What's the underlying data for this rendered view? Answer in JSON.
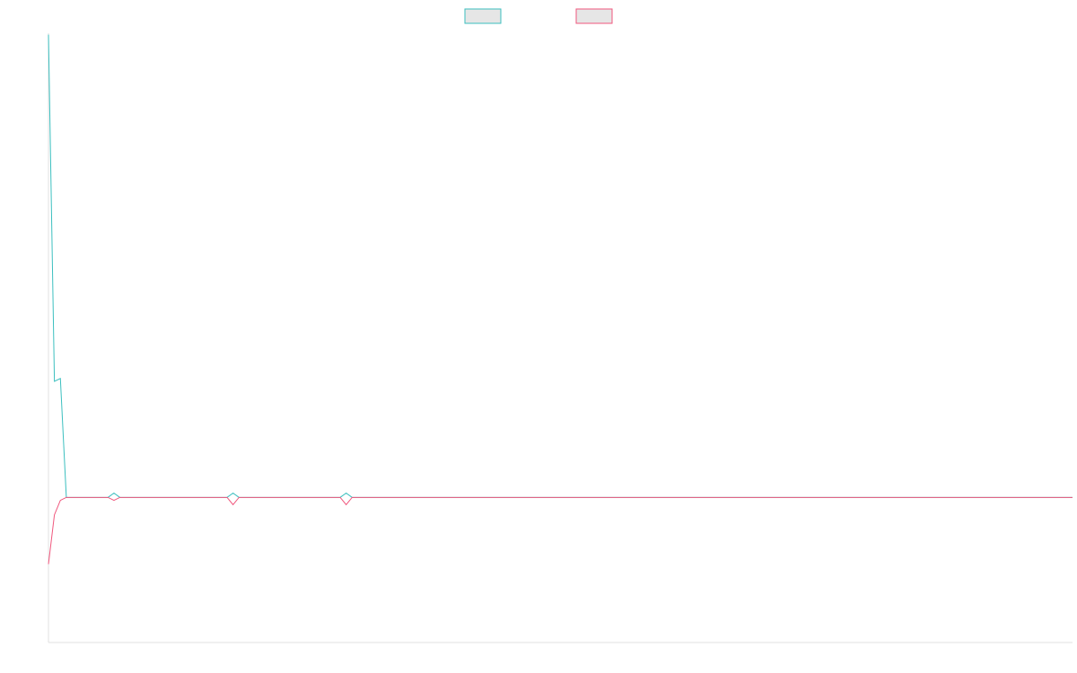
{
  "chart_data": {
    "type": "line",
    "title": "",
    "xlabel": "",
    "ylabel": "",
    "legend_position": "top-center",
    "grid": false,
    "colors": {
      "series_a": "#3bbfbf",
      "series_b": "#f0577d",
      "legend_fill": "#e6e6e6",
      "axis": "#e0e0e0"
    },
    "ylim": [
      -1.0,
      3.2
    ],
    "x": [
      0,
      1,
      2,
      3,
      4,
      5,
      6,
      7,
      8,
      9,
      10,
      11,
      12,
      13,
      14,
      15,
      16,
      17,
      18,
      19,
      20,
      21,
      22,
      23,
      24,
      25,
      26,
      27,
      28,
      29,
      30,
      31,
      32,
      33,
      34,
      35,
      36,
      37,
      38,
      39,
      40,
      41,
      42,
      43,
      44,
      45,
      46,
      47,
      48,
      49,
      50,
      51,
      52,
      53,
      54,
      55,
      56,
      57,
      58,
      59,
      60,
      61,
      62,
      63,
      64,
      65,
      66,
      67,
      68,
      69,
      70,
      71,
      72,
      73,
      74,
      75,
      76,
      77,
      78,
      79,
      80,
      81,
      82,
      83,
      84,
      85,
      86,
      87,
      88,
      89,
      90,
      91,
      92,
      93,
      94,
      95,
      96,
      97,
      98,
      99,
      100,
      101,
      102,
      103,
      104,
      105,
      106,
      107,
      108,
      109,
      110,
      111,
      112,
      113,
      114,
      115,
      116,
      117,
      118,
      119,
      120,
      121,
      122,
      123,
      124,
      125,
      126,
      127,
      128,
      129,
      130,
      131,
      132,
      133,
      134,
      135,
      136,
      137,
      138,
      139,
      140,
      141,
      142,
      143,
      144,
      145,
      146,
      147,
      148,
      149,
      150,
      151,
      152,
      153,
      154,
      155,
      156,
      157,
      158,
      159,
      160,
      161,
      162,
      163,
      164,
      165,
      166,
      167,
      168,
      169,
      170,
      171,
      172
    ],
    "series": [
      {
        "name": "",
        "values": [
          3.19,
          0.8,
          0.82,
          0.0,
          0.0,
          0.0,
          0.0,
          0.0,
          0.0,
          0.0,
          0.0,
          0.03,
          0.0,
          0.0,
          0.0,
          0.0,
          0.0,
          0.0,
          0.0,
          0.0,
          0.0,
          0.0,
          0.0,
          0.0,
          0.0,
          0.0,
          0.0,
          0.0,
          0.0,
          0.0,
          0.0,
          0.03,
          0.0,
          0.0,
          0.0,
          0.0,
          0.0,
          0.0,
          0.0,
          0.0,
          0.0,
          0.0,
          0.0,
          0.0,
          0.0,
          0.0,
          0.0,
          0.0,
          0.0,
          0.0,
          0.03,
          0.0,
          0.0,
          0.0,
          0.0,
          0.0,
          0.0,
          0.0,
          0.0,
          0.0,
          0.0,
          0.0,
          0.0,
          0.0,
          0.0,
          0.0,
          0.0,
          0.0,
          0.0,
          0.0,
          0.0,
          0.0,
          0.0,
          0.0,
          0.0,
          0.0,
          0.0,
          0.0,
          0.0,
          0.0,
          0.0,
          0.0,
          0.0,
          0.0,
          0.0,
          0.0,
          0.0,
          0.0,
          0.0,
          0.0,
          0.0,
          0.0,
          0.0,
          0.0,
          0.0,
          0.0,
          0.0,
          0.0,
          0.0,
          0.0,
          0.0,
          0.0,
          0.0,
          0.0,
          0.0,
          0.0,
          0.0,
          0.0,
          0.0,
          0.0,
          0.0,
          0.0,
          0.0,
          0.0,
          0.0,
          0.0,
          0.0,
          0.0,
          0.0,
          0.0,
          0.0,
          0.0,
          0.0,
          0.0,
          0.0,
          0.0,
          0.0,
          0.0,
          0.0,
          0.0,
          0.0,
          0.0,
          0.0,
          0.0,
          0.0,
          0.0,
          0.0,
          0.0,
          0.0,
          0.0,
          0.0,
          0.0,
          0.0,
          0.0,
          0.0,
          0.0,
          0.0,
          0.0,
          0.0,
          0.0,
          0.0,
          0.0,
          0.0,
          0.0,
          0.0,
          0.0,
          0.0,
          0.0,
          0.0,
          0.0,
          0.0,
          0.0,
          0.0,
          0.0,
          0.0,
          0.0,
          0.0,
          0.0,
          0.0,
          0.0,
          0.0,
          0.0,
          0.0
        ]
      },
      {
        "name": "",
        "values": [
          -0.46,
          -0.12,
          -0.02,
          0.0,
          0.0,
          0.0,
          0.0,
          0.0,
          0.0,
          0.0,
          0.0,
          -0.02,
          0.0,
          0.0,
          0.0,
          0.0,
          0.0,
          0.0,
          0.0,
          0.0,
          0.0,
          0.0,
          0.0,
          0.0,
          0.0,
          0.0,
          0.0,
          0.0,
          0.0,
          0.0,
          0.0,
          -0.05,
          0.0,
          0.0,
          0.0,
          0.0,
          0.0,
          0.0,
          0.0,
          0.0,
          0.0,
          0.0,
          0.0,
          0.0,
          0.0,
          0.0,
          0.0,
          0.0,
          0.0,
          0.0,
          -0.05,
          0.0,
          0.0,
          0.0,
          0.0,
          0.0,
          0.0,
          0.0,
          0.0,
          0.0,
          0.0,
          0.0,
          0.0,
          0.0,
          0.0,
          0.0,
          0.0,
          0.0,
          0.0,
          0.0,
          0.0,
          0.0,
          0.0,
          0.0,
          0.0,
          0.0,
          0.0,
          0.0,
          0.0,
          0.0,
          0.0,
          0.0,
          0.0,
          0.0,
          0.0,
          0.0,
          0.0,
          0.0,
          0.0,
          0.0,
          0.0,
          0.0,
          0.0,
          0.0,
          0.0,
          0.0,
          0.0,
          0.0,
          0.0,
          0.0,
          0.0,
          0.0,
          0.0,
          0.0,
          0.0,
          0.0,
          0.0,
          0.0,
          0.0,
          0.0,
          0.0,
          0.0,
          0.0,
          0.0,
          0.0,
          0.0,
          0.0,
          0.0,
          0.0,
          0.0,
          0.0,
          0.0,
          0.0,
          0.0,
          0.0,
          0.0,
          0.0,
          0.0,
          0.0,
          0.0,
          0.0,
          0.0,
          0.0,
          0.0,
          0.0,
          0.0,
          0.0,
          0.0,
          0.0,
          0.0,
          0.0,
          0.0,
          0.0,
          0.0,
          0.0,
          0.0,
          0.0,
          0.0,
          0.0,
          0.0,
          0.0,
          0.0,
          0.0,
          0.0,
          0.0,
          0.0,
          0.0,
          0.0,
          0.0,
          0.0,
          0.0,
          0.0,
          0.0,
          0.0,
          0.0,
          0.0,
          0.0,
          0.0,
          0.0,
          0.0,
          0.0,
          0.0,
          0.0
        ]
      }
    ]
  }
}
